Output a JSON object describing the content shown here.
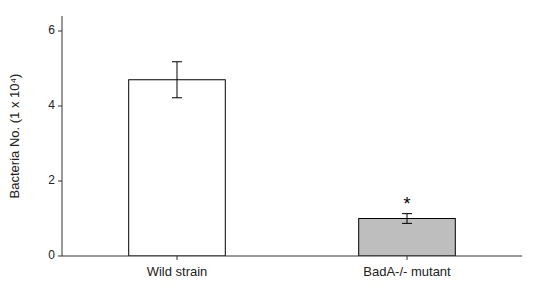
{
  "chart_data": {
    "type": "bar",
    "categories": [
      "Wild strain",
      "BadA-/- mutant"
    ],
    "values": [
      4.7,
      1.0
    ],
    "errors": [
      0.48,
      0.13
    ],
    "colors": [
      "#ffffff",
      "#bebebe"
    ],
    "y_label": "Bacteria No. (1 x 10⁴)",
    "ylim": [
      0,
      6.4
    ],
    "yticks": [
      0,
      2,
      4,
      6
    ],
    "grid": false,
    "annotations": [
      {
        "text": "*",
        "x": "BadA-/- mutant"
      }
    ]
  }
}
